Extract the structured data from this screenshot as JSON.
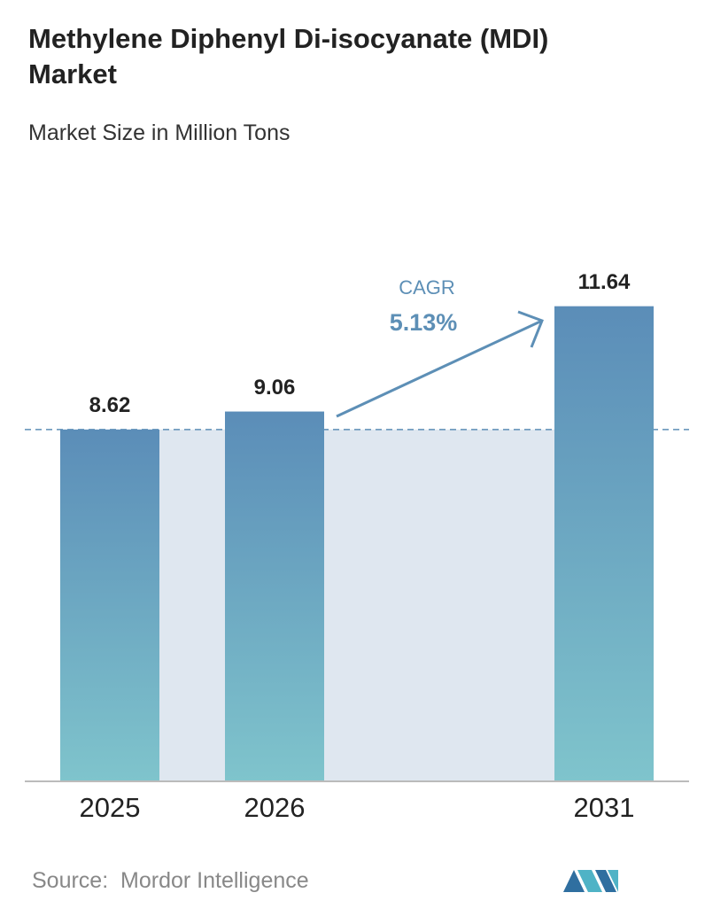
{
  "chart_data": {
    "type": "bar",
    "title": "Methylene Diphenyl Di-isocyanate (MDI) Market",
    "subtitle": "Market Size in Million Tons",
    "categories": [
      "2025",
      "2026",
      "2031"
    ],
    "values": [
      8.62,
      9.06,
      11.64
    ],
    "ylim": [
      0,
      13
    ],
    "annotation": {
      "label": "CAGR",
      "value": "5.13%"
    },
    "source": "Source:  Mordor Intelligence"
  }
}
